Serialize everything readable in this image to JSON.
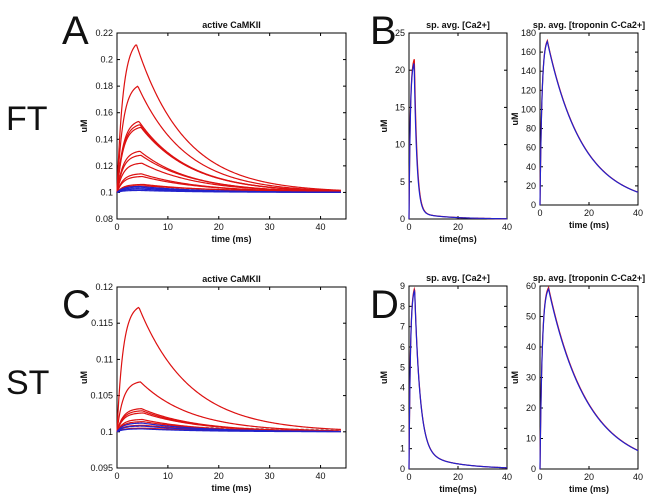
{
  "figure": {
    "row_labels": [
      "FT",
      "ST"
    ],
    "panel_letters": [
      "A",
      "B",
      "C",
      "D"
    ]
  },
  "colors": {
    "red": "#dd1111",
    "blue": "#2222cc",
    "gray": "#999999"
  },
  "chart_data": [
    {
      "id": "ft_camkii",
      "type": "line",
      "title": "active CaMKII",
      "xlabel": "time (ms)",
      "ylabel": "uM",
      "xlim": [
        0,
        45
      ],
      "ylim": [
        0.08,
        0.22
      ],
      "xticks": [
        0,
        10,
        20,
        30,
        40
      ],
      "yticks": [
        0.08,
        0.1,
        0.12,
        0.14,
        0.16,
        0.18,
        0.2,
        0.22
      ],
      "ytick_labels": [
        "0.08",
        "0.1",
        "0.12",
        "0.14",
        "0.16",
        "0.18",
        "0.2",
        "0.22"
      ],
      "xmax_data": 44,
      "series": [
        {
          "name": "red-1",
          "color": "red",
          "baseline": 0.1,
          "peak": 0.2115,
          "t_peak": 3.8,
          "rise_tau": 1.2,
          "decay_tau": 9.5
        },
        {
          "name": "red-2",
          "color": "red",
          "baseline": 0.1,
          "peak": 0.18,
          "t_peak": 4.1,
          "rise_tau": 1.2,
          "decay_tau": 9.5
        },
        {
          "name": "red-3",
          "color": "red",
          "baseline": 0.1,
          "peak": 0.1535,
          "t_peak": 4.3,
          "rise_tau": 1.2,
          "decay_tau": 9.8
        },
        {
          "name": "red-4",
          "color": "red",
          "baseline": 0.1,
          "peak": 0.151,
          "t_peak": 4.5,
          "rise_tau": 1.2,
          "decay_tau": 9.8
        },
        {
          "name": "red-5",
          "color": "red",
          "baseline": 0.1,
          "peak": 0.149,
          "t_peak": 4.7,
          "rise_tau": 1.2,
          "decay_tau": 10.0
        },
        {
          "name": "red-6",
          "color": "red",
          "baseline": 0.1,
          "peak": 0.131,
          "t_peak": 4.5,
          "rise_tau": 1.2,
          "decay_tau": 10.0
        },
        {
          "name": "red-7",
          "color": "red",
          "baseline": 0.1,
          "peak": 0.128,
          "t_peak": 4.7,
          "rise_tau": 1.2,
          "decay_tau": 10.5
        },
        {
          "name": "red-8",
          "color": "red",
          "baseline": 0.1,
          "peak": 0.122,
          "t_peak": 4.9,
          "rise_tau": 1.2,
          "decay_tau": 11.0
        },
        {
          "name": "red-9",
          "color": "red",
          "baseline": 0.1,
          "peak": 0.114,
          "t_peak": 4.8,
          "rise_tau": 1.2,
          "decay_tau": 11.5
        },
        {
          "name": "red-10",
          "color": "red",
          "baseline": 0.1,
          "peak": 0.112,
          "t_peak": 5.0,
          "rise_tau": 1.2,
          "decay_tau": 12.0
        },
        {
          "name": "red-11",
          "color": "red",
          "baseline": 0.1,
          "peak": 0.106,
          "t_peak": 5.2,
          "rise_tau": 1.2,
          "decay_tau": 14.0
        },
        {
          "name": "red-12",
          "color": "red",
          "baseline": 0.1,
          "peak": 0.105,
          "t_peak": 5.2,
          "rise_tau": 1.2,
          "decay_tau": 18.0
        },
        {
          "name": "blue-1",
          "color": "blue",
          "baseline": 0.1,
          "peak": 0.1045,
          "t_peak": 4.5,
          "rise_tau": 1.2,
          "decay_tau": 12.0
        },
        {
          "name": "blue-2",
          "color": "blue",
          "baseline": 0.1,
          "peak": 0.1035,
          "t_peak": 4.5,
          "rise_tau": 1.2,
          "decay_tau": 12.0
        },
        {
          "name": "blue-3",
          "color": "blue",
          "baseline": 0.1,
          "peak": 0.1025,
          "t_peak": 4.5,
          "rise_tau": 1.2,
          "decay_tau": 12.0
        },
        {
          "name": "blue-4",
          "color": "blue",
          "baseline": 0.1,
          "peak": 0.1015,
          "t_peak": 4.5,
          "rise_tau": 1.2,
          "decay_tau": 12.0
        },
        {
          "name": "gray-1",
          "color": "gray",
          "baseline": 0.1,
          "peak": 0.1035,
          "t_peak": 5.0,
          "rise_tau": 1.2,
          "decay_tau": 30.0
        }
      ]
    },
    {
      "id": "ft_ca",
      "type": "line",
      "title": "sp. avg. [Ca2+]",
      "xlabel": "time(ms)",
      "ylabel": "uM",
      "xlim": [
        0,
        40
      ],
      "ylim": [
        0,
        25
      ],
      "xticks": [
        0,
        20,
        40
      ],
      "yticks": [
        0,
        5,
        10,
        15,
        20,
        25
      ],
      "ytick_labels": [
        "0",
        "5",
        "10",
        "15",
        "20",
        "25"
      ],
      "xmax_data": 40,
      "series": [
        {
          "name": "red-1",
          "color": "red",
          "baseline": 0,
          "peak": 21.5,
          "t_peak": 2.2,
          "rise_tau": 0.55,
          "decay_tau": 1.1,
          "tail_frac": 0.04,
          "tail_tau": 12
        },
        {
          "name": "blue-1",
          "color": "blue",
          "baseline": 0,
          "peak": 21.0,
          "t_peak": 2.1,
          "rise_tau": 0.55,
          "decay_tau": 1.1,
          "tail_frac": 0.04,
          "tail_tau": 12
        }
      ]
    },
    {
      "id": "ft_troponin",
      "type": "line",
      "title": "sp. avg. [troponin C-Ca2+]",
      "xlabel": "time (ms)",
      "ylabel": "uM",
      "xlim": [
        0,
        40
      ],
      "ylim": [
        0,
        180
      ],
      "xticks": [
        0,
        20,
        40
      ],
      "yticks": [
        0,
        20,
        40,
        60,
        80,
        100,
        120,
        140,
        160,
        180
      ],
      "ytick_labels": [
        "0",
        "20",
        "40",
        "60",
        "80",
        "100",
        "120",
        "140",
        "160",
        "180"
      ],
      "xmax_data": 40,
      "series": [
        {
          "name": "red-1",
          "color": "red",
          "baseline": 0,
          "peak": 172,
          "t_peak": 3.0,
          "rise_tau": 0.8,
          "decay_tau": 14.5
        },
        {
          "name": "blue-1",
          "color": "blue",
          "baseline": 0,
          "peak": 171,
          "t_peak": 3.0,
          "rise_tau": 0.8,
          "decay_tau": 14.5
        }
      ]
    },
    {
      "id": "st_camkii",
      "type": "line",
      "title": "active CaMKII",
      "xlabel": "time (ms)",
      "ylabel": "uM",
      "xlim": [
        0,
        45
      ],
      "ylim": [
        0.095,
        0.12
      ],
      "xticks": [
        0,
        10,
        20,
        30,
        40
      ],
      "yticks": [
        0.095,
        0.1,
        0.105,
        0.11,
        0.115,
        0.12
      ],
      "ytick_labels": [
        "0.095",
        "0.1",
        "0.105",
        "0.11",
        "0.115",
        "0.12"
      ],
      "xmax_data": 44,
      "series": [
        {
          "name": "red-1",
          "color": "red",
          "baseline": 0.1,
          "peak": 0.1172,
          "t_peak": 4.3,
          "rise_tau": 1.2,
          "decay_tau": 10.0
        },
        {
          "name": "red-2",
          "color": "red",
          "baseline": 0.1,
          "peak": 0.1069,
          "t_peak": 4.6,
          "rise_tau": 1.2,
          "decay_tau": 10.0
        },
        {
          "name": "red-3",
          "color": "red",
          "baseline": 0.1,
          "peak": 0.1032,
          "t_peak": 4.8,
          "rise_tau": 1.2,
          "decay_tau": 10.5
        },
        {
          "name": "red-4",
          "color": "red",
          "baseline": 0.1,
          "peak": 0.1029,
          "t_peak": 5.0,
          "rise_tau": 1.2,
          "decay_tau": 10.5
        },
        {
          "name": "red-5",
          "color": "red",
          "baseline": 0.1,
          "peak": 0.1026,
          "t_peak": 5.2,
          "rise_tau": 1.2,
          "decay_tau": 11.0
        },
        {
          "name": "red-6",
          "color": "red",
          "baseline": 0.1,
          "peak": 0.1017,
          "t_peak": 5.0,
          "rise_tau": 1.2,
          "decay_tau": 11.0
        },
        {
          "name": "red-7",
          "color": "red",
          "baseline": 0.1,
          "peak": 0.1014,
          "t_peak": 5.2,
          "rise_tau": 1.2,
          "decay_tau": 12.0
        },
        {
          "name": "red-8",
          "color": "red",
          "baseline": 0.1,
          "peak": 0.1009,
          "t_peak": 5.2,
          "rise_tau": 1.2,
          "decay_tau": 13.0
        },
        {
          "name": "red-9",
          "color": "red",
          "baseline": 0.1,
          "peak": 0.1005,
          "t_peak": 5.4,
          "rise_tau": 1.2,
          "decay_tau": 15.0
        },
        {
          "name": "blue-1",
          "color": "blue",
          "baseline": 0.1,
          "peak": 0.1012,
          "t_peak": 5.0,
          "rise_tau": 1.2,
          "decay_tau": 12.0
        },
        {
          "name": "blue-2",
          "color": "blue",
          "baseline": 0.1,
          "peak": 0.1008,
          "t_peak": 5.0,
          "rise_tau": 1.2,
          "decay_tau": 12.0
        },
        {
          "name": "blue-3",
          "color": "blue",
          "baseline": 0.1,
          "peak": 0.1004,
          "t_peak": 5.0,
          "rise_tau": 1.2,
          "decay_tau": 12.0
        },
        {
          "name": "gray-1",
          "color": "gray",
          "baseline": 0.1,
          "peak": 0.1008,
          "t_peak": 5.5,
          "rise_tau": 1.2,
          "decay_tau": 35.0
        }
      ]
    },
    {
      "id": "st_ca",
      "type": "line",
      "title": "sp. avg. [Ca2+]",
      "xlabel": "time(ms)",
      "ylabel": "uM",
      "xlim": [
        0,
        40
      ],
      "ylim": [
        0,
        9
      ],
      "xticks": [
        0,
        20,
        40
      ],
      "yticks": [
        0,
        1,
        2,
        3,
        4,
        5,
        6,
        7,
        8,
        9
      ],
      "ytick_labels": [
        "0",
        "1",
        "2",
        "3",
        "4",
        "5",
        "6",
        "7",
        "8",
        "9"
      ],
      "xmax_data": 40,
      "series": [
        {
          "name": "red-1",
          "color": "red",
          "baseline": 0,
          "peak": 8.9,
          "t_peak": 2.3,
          "rise_tau": 0.6,
          "decay_tau": 2.2,
          "tail_frac": 0.1,
          "tail_tau": 14
        },
        {
          "name": "blue-1",
          "color": "blue",
          "baseline": 0,
          "peak": 8.8,
          "t_peak": 2.3,
          "rise_tau": 0.6,
          "decay_tau": 2.2,
          "tail_frac": 0.1,
          "tail_tau": 14
        }
      ]
    },
    {
      "id": "st_troponin",
      "type": "line",
      "title": "sp. avg. [troponin C-Ca2+]",
      "xlabel": "time (ms)",
      "ylabel": "uM",
      "xlim": [
        0,
        40
      ],
      "ylim": [
        0,
        60
      ],
      "xticks": [
        0,
        20,
        40
      ],
      "yticks": [
        0,
        10,
        20,
        30,
        40,
        50,
        60
      ],
      "ytick_labels": [
        "0",
        "10",
        "20",
        "30",
        "40",
        "50",
        "60"
      ],
      "xmax_data": 40,
      "series": [
        {
          "name": "red-1",
          "color": "red",
          "baseline": 0,
          "peak": 59.5,
          "t_peak": 3.5,
          "rise_tau": 0.9,
          "decay_tau": 16.0
        },
        {
          "name": "blue-1",
          "color": "blue",
          "baseline": 0,
          "peak": 59.0,
          "t_peak": 3.5,
          "rise_tau": 0.9,
          "decay_tau": 16.0
        }
      ]
    }
  ]
}
